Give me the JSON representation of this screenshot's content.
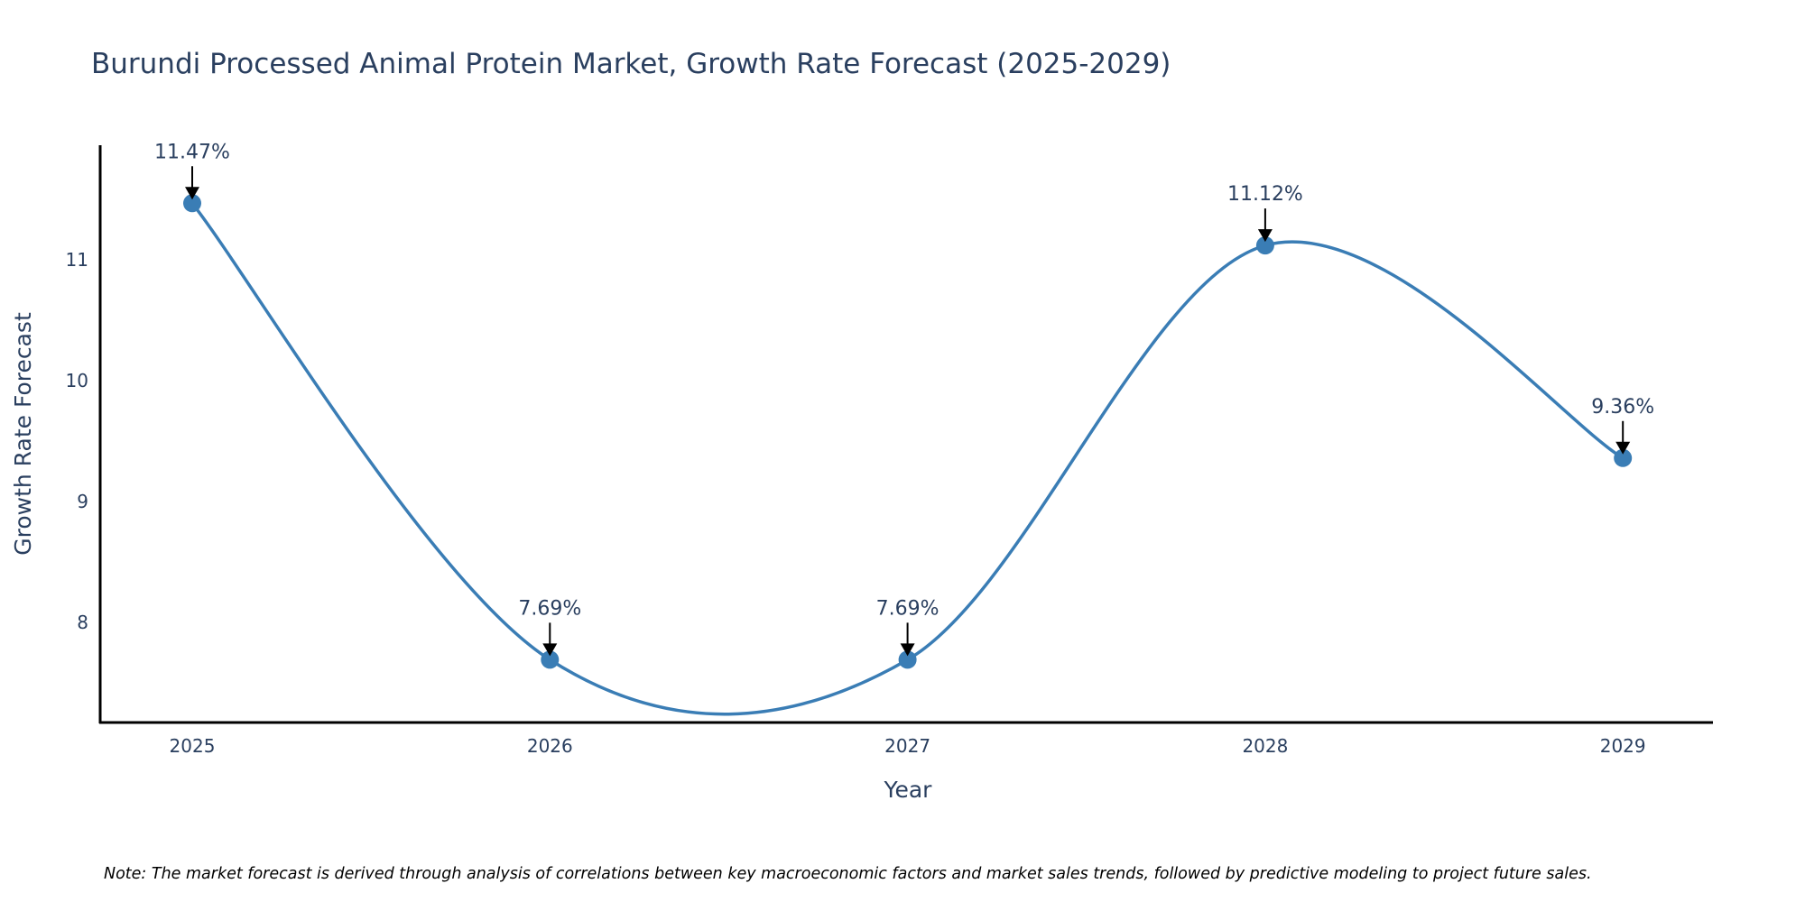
{
  "chart_data": {
    "type": "line",
    "title": "Burundi Processed Animal Protein Market, Growth Rate Forecast (2025-2029)",
    "xlabel": "Year",
    "ylabel": "Growth Rate Forecast",
    "categories": [
      "2025",
      "2026",
      "2027",
      "2028",
      "2029"
    ],
    "series": [
      {
        "name": "Growth Rate Forecast",
        "values": [
          11.47,
          7.69,
          7.69,
          11.12,
          9.36
        ],
        "color": "#3a7db5",
        "line_shape": "spline",
        "markers": true
      }
    ],
    "data_labels": [
      "11.47%",
      "7.69%",
      "7.69%",
      "11.12%",
      "9.36%"
    ],
    "ylim": [
      7.17,
      11.95
    ],
    "yticks": [
      8,
      9,
      10,
      11
    ],
    "ytick_labels": [
      "8",
      "9",
      "10",
      "11"
    ],
    "grid": false,
    "legend": "none",
    "note": "Note: The market forecast is derived through analysis of correlations between key macroeconomic factors and market sales trends, followed by predictive modeling to project future sales."
  }
}
